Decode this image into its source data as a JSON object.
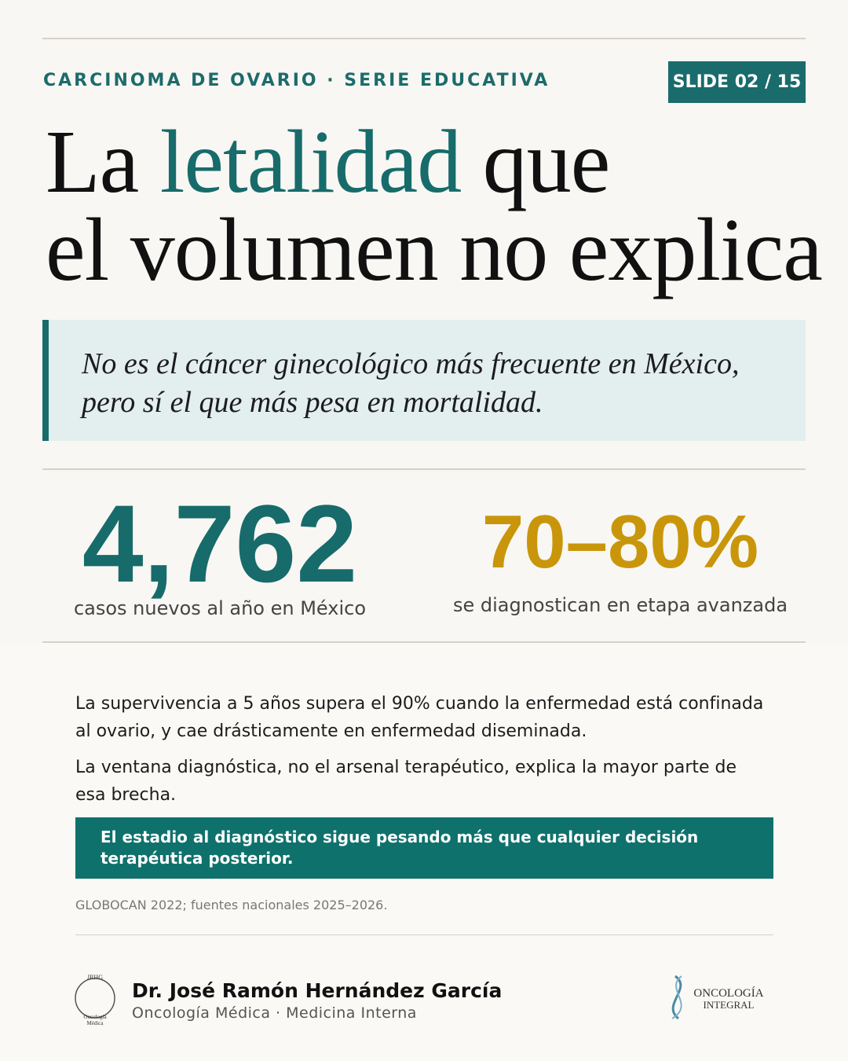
{
  "header": {
    "kicker": "CARCINOMA DE OVARIO · SERIE EDUCATIVA",
    "slide": "SLIDE 02 / 15"
  },
  "title": {
    "start": "La",
    "highlight": "letalidad",
    "end": "que",
    "line2": "el volumen no explica"
  },
  "quote": [
    "No es el cáncer ginecológico más frecuente en México,",
    "pero sí el que más pesa en mortalidad."
  ],
  "stats": [
    {
      "value": "4,762",
      "label": "casos nuevos al año en México"
    },
    {
      "value": "70–80%",
      "label": "se diagnostican en etapa avanzada"
    }
  ],
  "body": [
    "La supervivencia a 5 años supera el 90% cuando la enfermedad está confinada al ovario, y cae drásticamente en enfermedad diseminada.",
    "La ventana diagnóstica, no el arsenal terapéutico, explica la mayor parte de esa brecha."
  ],
  "callout": "El estadio al diagnóstico sigue pesando más que cualquier decisión terapéutica posterior.",
  "source": "GLOBOCAN 2022; fuentes nacionales 2025–2026.",
  "footer": {
    "name": "Dr. José Ramón Hernández García",
    "role": "Oncología Médica · Medicina Interna",
    "logo_left": [
      "JRHG",
      "Oncología",
      "Médica"
    ],
    "logo_right": [
      "ONCOLOGÍA",
      "INTEGRAL"
    ]
  }
}
